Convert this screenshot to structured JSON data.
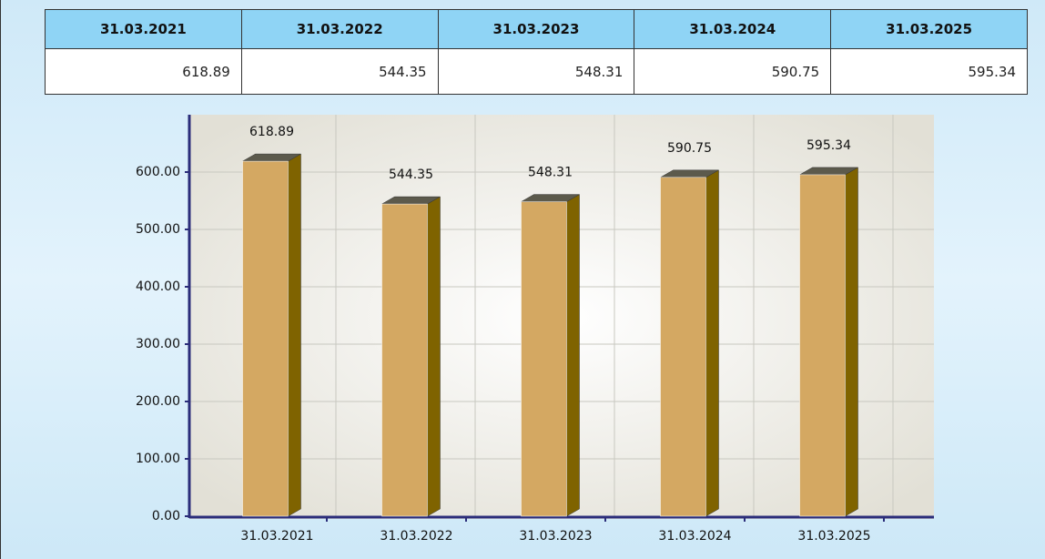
{
  "table": {
    "headers": [
      "31.03.2021",
      "31.03.2022",
      "31.03.2023",
      "31.03.2024",
      "31.03.2025"
    ],
    "rows": [
      [
        "618.89",
        "544.35",
        "548.31",
        "590.75",
        "595.34"
      ]
    ]
  },
  "chart_data": {
    "type": "bar3d",
    "categories": [
      "31.03.2021",
      "31.03.2022",
      "31.03.2023",
      "31.03.2024",
      "31.03.2025"
    ],
    "values": [
      618.89,
      544.35,
      548.31,
      590.75,
      595.34
    ],
    "color": "#d4a862",
    "side_color": "#7f6300",
    "top_color": "#5c5a4c",
    "ylim": [
      0,
      700
    ],
    "yticks": [
      {
        "value": 0,
        "label": "0.00"
      },
      {
        "value": 100,
        "label": "100.00"
      },
      {
        "value": 200,
        "label": "200.00"
      },
      {
        "value": 300,
        "label": "300.00"
      },
      {
        "value": 400,
        "label": "400.00"
      },
      {
        "value": 500,
        "label": "500.00"
      },
      {
        "value": 600,
        "label": "600.00"
      }
    ],
    "grid": true
  }
}
